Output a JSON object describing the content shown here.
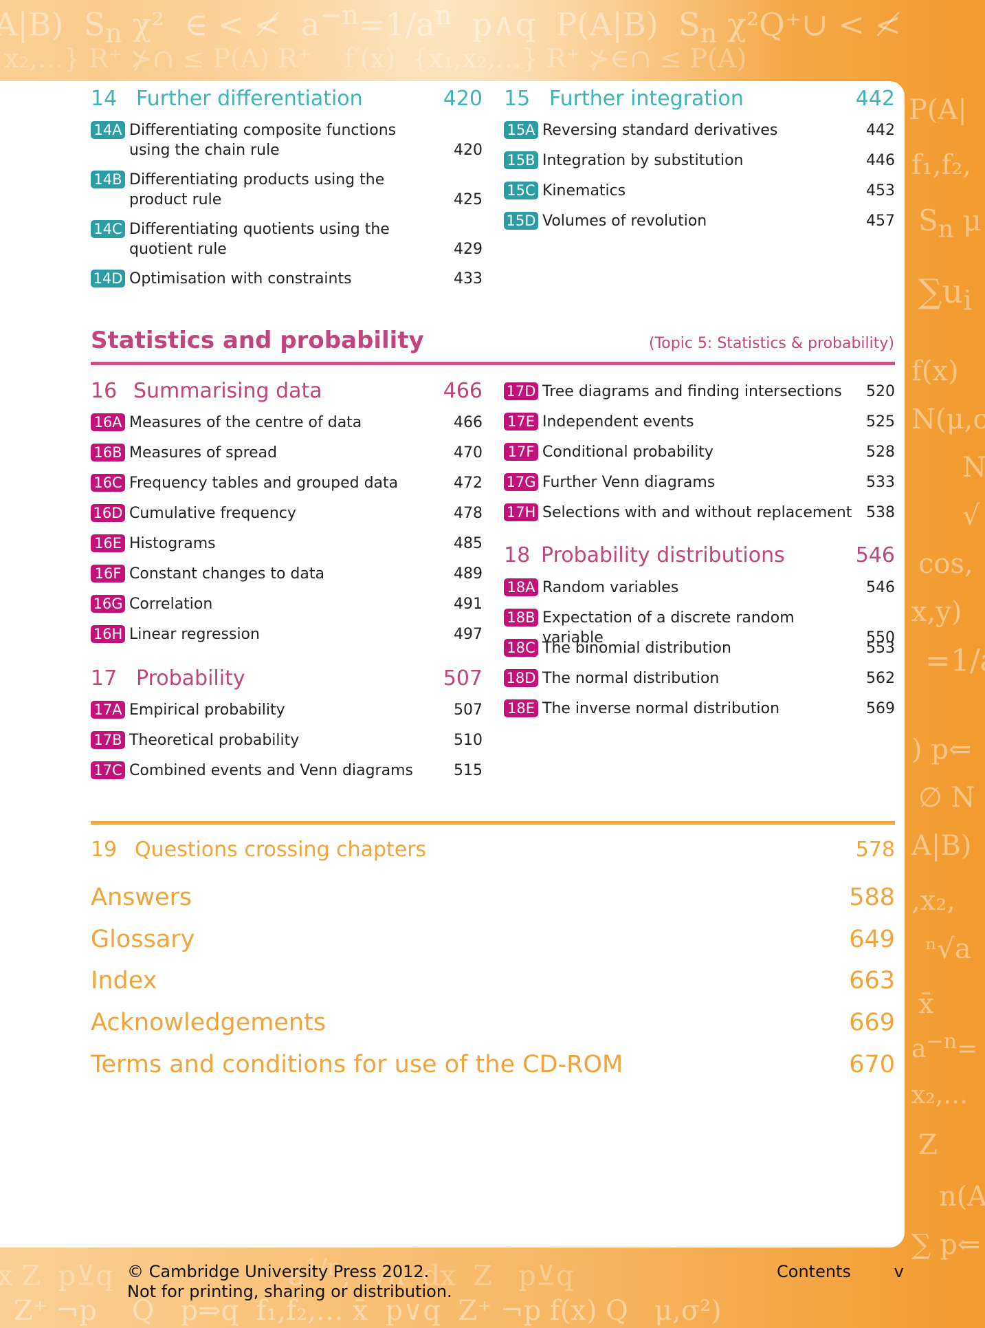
{
  "colors": {
    "teal": "#3fb3b8",
    "magenta": "#c0447e",
    "orange": "#f0a43a"
  },
  "chapters": {
    "c14": {
      "num": "14",
      "title": "Further differentiation",
      "page": "420",
      "items": [
        {
          "code": "14A",
          "text": "Differentiating composite functions using the chain rule",
          "page": "420"
        },
        {
          "code": "14B",
          "text": "Differentiating products using the product rule",
          "page": "425"
        },
        {
          "code": "14C",
          "text": "Differentiating quotients using the quotient rule",
          "page": "429"
        },
        {
          "code": "14D",
          "text": "Optimisation with constraints",
          "page": "433"
        }
      ]
    },
    "c15": {
      "num": "15",
      "title": "Further integration",
      "page": "442",
      "items": [
        {
          "code": "15A",
          "text": "Reversing standard derivatives",
          "page": "442"
        },
        {
          "code": "15B",
          "text": "Integration by substitution",
          "page": "446"
        },
        {
          "code": "15C",
          "text": "Kinematics",
          "page": "453"
        },
        {
          "code": "15D",
          "text": "Volumes of revolution",
          "page": "457"
        }
      ]
    },
    "c16": {
      "num": "16",
      "title": "Summarising data",
      "page": "466",
      "items": [
        {
          "code": "16A",
          "text": "Measures of the centre of data",
          "page": "466"
        },
        {
          "code": "16B",
          "text": "Measures of spread",
          "page": "470"
        },
        {
          "code": "16C",
          "text": "Frequency tables and grouped data",
          "page": "472"
        },
        {
          "code": "16D",
          "text": "Cumulative frequency",
          "page": "478"
        },
        {
          "code": "16E",
          "text": "Histograms",
          "page": "485"
        },
        {
          "code": "16F",
          "text": "Constant changes to data",
          "page": "489"
        },
        {
          "code": "16G",
          "text": "Correlation",
          "page": "491"
        },
        {
          "code": "16H",
          "text": "Linear regression",
          "page": "497"
        }
      ]
    },
    "c17": {
      "num": "17",
      "title": "Probability",
      "page": "507",
      "items": [
        {
          "code": "17A",
          "text": "Empirical probability",
          "page": "507"
        },
        {
          "code": "17B",
          "text": "Theoretical probability",
          "page": "510"
        },
        {
          "code": "17C",
          "text": "Combined events and Venn diagrams",
          "page": "515"
        },
        {
          "code": "17D",
          "text": "Tree diagrams and finding intersections",
          "page": "520"
        },
        {
          "code": "17E",
          "text": "Independent events",
          "page": "525"
        },
        {
          "code": "17F",
          "text": "Conditional probability",
          "page": "528"
        },
        {
          "code": "17G",
          "text": "Further Venn diagrams",
          "page": "533"
        },
        {
          "code": "17H",
          "text": "Selections with and without replacement",
          "page": "538"
        }
      ]
    },
    "c18": {
      "num": "18",
      "title": "Probability distributions",
      "page": "546",
      "items": [
        {
          "code": "18A",
          "text": "Random variables",
          "page": "546"
        },
        {
          "code": "18B",
          "text": "Expectation of a discrete random variable",
          "page": "550"
        },
        {
          "code": "18C",
          "text": "The binomial distribution",
          "page": "553"
        },
        {
          "code": "18D",
          "text": "The normal distribution",
          "page": "562"
        },
        {
          "code": "18E",
          "text": "The inverse normal distribution",
          "page": "569"
        }
      ]
    },
    "c19": {
      "num": "19",
      "title": "Questions crossing chapters",
      "page": "578"
    }
  },
  "section": {
    "title": "Statistics and probability",
    "topic": "(Topic 5: Statistics & probability)"
  },
  "backmatter": [
    {
      "title": "Answers",
      "page": "588"
    },
    {
      "title": "Glossary",
      "page": "649"
    },
    {
      "title": "Index",
      "page": "663"
    },
    {
      "title": "Acknowledgements",
      "page": "669"
    },
    {
      "title": "Terms and conditions for use of the CD-ROM",
      "page": "670"
    }
  ],
  "footer": {
    "copyright": "© Cambridge University Press 2012.",
    "notice": "Not for printing, sharing or distribution.",
    "section": "Contents",
    "page": "v"
  }
}
